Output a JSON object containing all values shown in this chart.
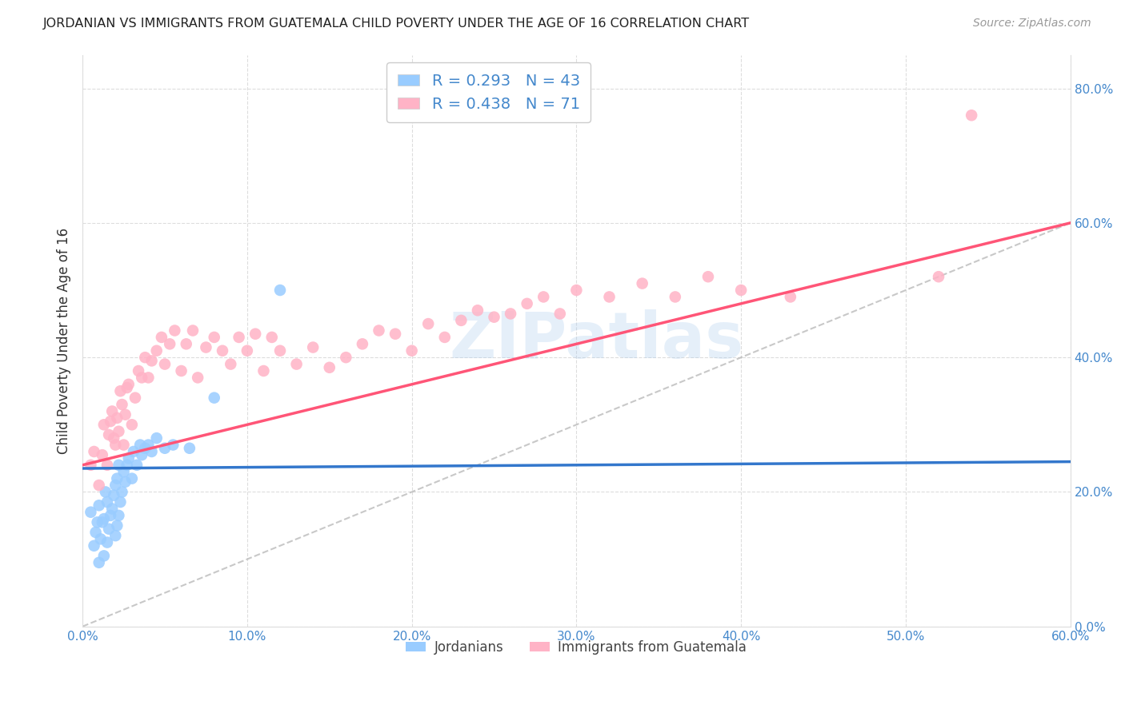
{
  "title": "JORDANIAN VS IMMIGRANTS FROM GUATEMALA CHILD POVERTY UNDER THE AGE OF 16 CORRELATION CHART",
  "source": "Source: ZipAtlas.com",
  "ylabel": "Child Poverty Under the Age of 16",
  "xlim": [
    0.0,
    0.6
  ],
  "ylim": [
    0.0,
    0.85
  ],
  "xticks": [
    0.0,
    0.1,
    0.2,
    0.3,
    0.4,
    0.5,
    0.6
  ],
  "yticks": [
    0.0,
    0.2,
    0.4,
    0.6,
    0.8
  ],
  "xtick_labels": [
    "0.0%",
    "10.0%",
    "20.0%",
    "30.0%",
    "40.0%",
    "50.0%",
    "60.0%"
  ],
  "ytick_labels": [
    "0.0%",
    "20.0%",
    "40.0%",
    "60.0%",
    "80.0%"
  ],
  "blue_R": 0.293,
  "blue_N": 43,
  "pink_R": 0.438,
  "pink_N": 71,
  "blue_color": "#99CCFF",
  "pink_color": "#FFB3C6",
  "blue_line_color": "#3377CC",
  "pink_line_color": "#FF5577",
  "diagonal_color": "#BBBBBB",
  "watermark_text": "ZIPatlas",
  "watermark_color": "#AACCEE",
  "legend_label_blue": "Jordanians",
  "legend_label_pink": "Immigrants from Guatemala",
  "blue_x": [
    0.005,
    0.007,
    0.008,
    0.009,
    0.01,
    0.01,
    0.011,
    0.012,
    0.013,
    0.013,
    0.014,
    0.015,
    0.015,
    0.016,
    0.017,
    0.018,
    0.019,
    0.02,
    0.02,
    0.021,
    0.021,
    0.022,
    0.022,
    0.023,
    0.024,
    0.025,
    0.026,
    0.027,
    0.028,
    0.03,
    0.031,
    0.033,
    0.035,
    0.036,
    0.038,
    0.04,
    0.042,
    0.045,
    0.05,
    0.055,
    0.065,
    0.08,
    0.12
  ],
  "blue_y": [
    0.17,
    0.12,
    0.14,
    0.155,
    0.095,
    0.18,
    0.13,
    0.155,
    0.105,
    0.16,
    0.2,
    0.125,
    0.185,
    0.145,
    0.165,
    0.175,
    0.195,
    0.135,
    0.21,
    0.15,
    0.22,
    0.165,
    0.24,
    0.185,
    0.2,
    0.23,
    0.215,
    0.24,
    0.25,
    0.22,
    0.26,
    0.24,
    0.27,
    0.255,
    0.265,
    0.27,
    0.26,
    0.28,
    0.265,
    0.27,
    0.265,
    0.34,
    0.5
  ],
  "pink_x": [
    0.005,
    0.007,
    0.01,
    0.012,
    0.013,
    0.015,
    0.016,
    0.017,
    0.018,
    0.019,
    0.02,
    0.021,
    0.022,
    0.023,
    0.024,
    0.025,
    0.026,
    0.027,
    0.028,
    0.03,
    0.032,
    0.034,
    0.036,
    0.038,
    0.04,
    0.042,
    0.045,
    0.048,
    0.05,
    0.053,
    0.056,
    0.06,
    0.063,
    0.067,
    0.07,
    0.075,
    0.08,
    0.085,
    0.09,
    0.095,
    0.1,
    0.105,
    0.11,
    0.115,
    0.12,
    0.13,
    0.14,
    0.15,
    0.16,
    0.17,
    0.18,
    0.19,
    0.2,
    0.21,
    0.22,
    0.23,
    0.24,
    0.25,
    0.26,
    0.27,
    0.28,
    0.29,
    0.3,
    0.32,
    0.34,
    0.36,
    0.38,
    0.4,
    0.43,
    0.52,
    0.54
  ],
  "pink_y": [
    0.24,
    0.26,
    0.21,
    0.255,
    0.3,
    0.24,
    0.285,
    0.305,
    0.32,
    0.28,
    0.27,
    0.31,
    0.29,
    0.35,
    0.33,
    0.27,
    0.315,
    0.355,
    0.36,
    0.3,
    0.34,
    0.38,
    0.37,
    0.4,
    0.37,
    0.395,
    0.41,
    0.43,
    0.39,
    0.42,
    0.44,
    0.38,
    0.42,
    0.44,
    0.37,
    0.415,
    0.43,
    0.41,
    0.39,
    0.43,
    0.41,
    0.435,
    0.38,
    0.43,
    0.41,
    0.39,
    0.415,
    0.385,
    0.4,
    0.42,
    0.44,
    0.435,
    0.41,
    0.45,
    0.43,
    0.455,
    0.47,
    0.46,
    0.465,
    0.48,
    0.49,
    0.465,
    0.5,
    0.49,
    0.51,
    0.49,
    0.52,
    0.5,
    0.49,
    0.52,
    0.76
  ],
  "blue_line_x": [
    0.0,
    0.6
  ],
  "blue_line_y": [
    0.235,
    0.245
  ],
  "pink_line_x": [
    0.0,
    0.6
  ],
  "pink_line_y": [
    0.24,
    0.6
  ]
}
